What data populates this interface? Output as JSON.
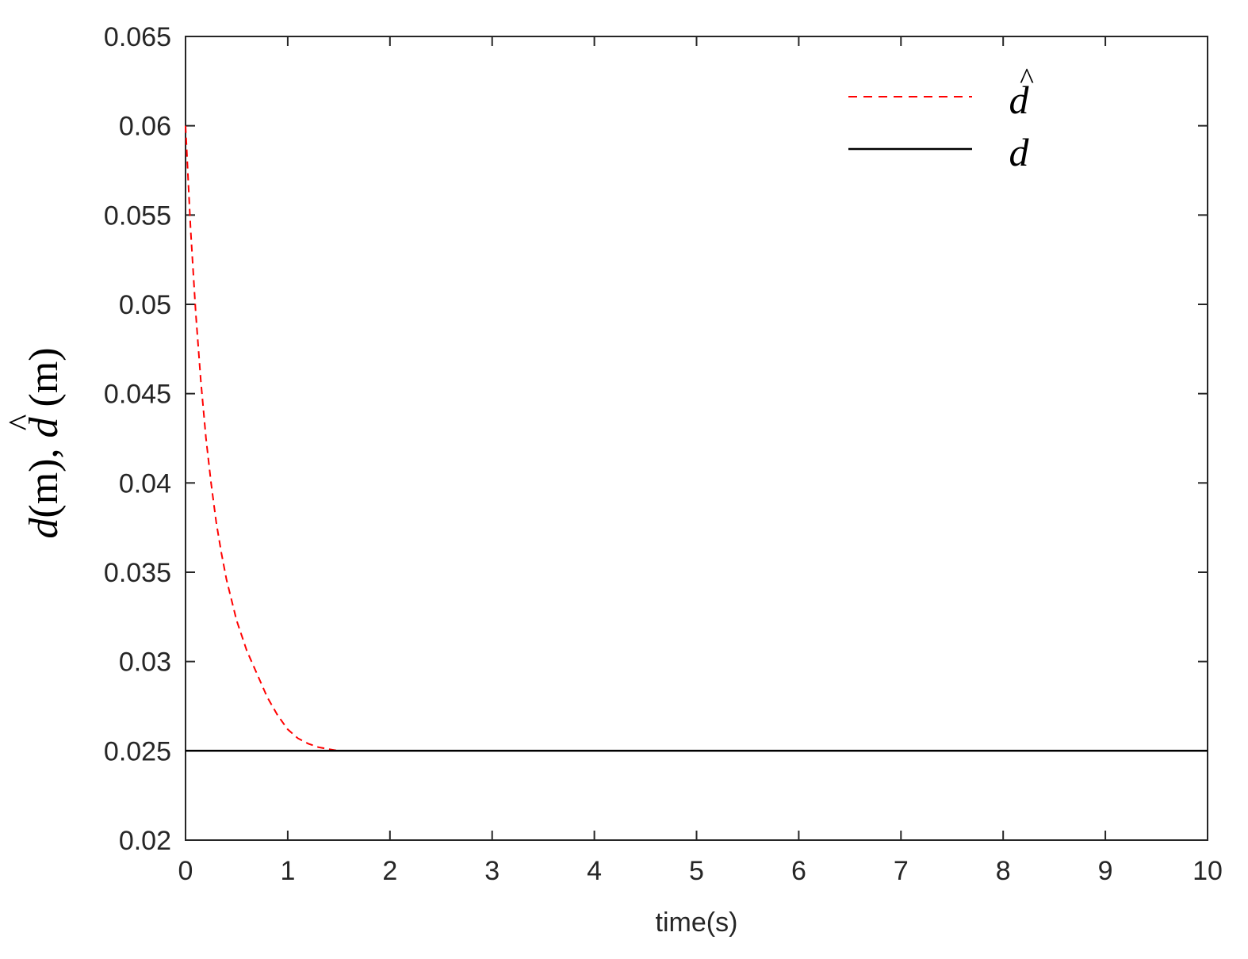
{
  "chart_data": {
    "type": "line",
    "xlabel": "time(s)",
    "ylabel": {
      "d_symbol": "d",
      "d_unit": "(m), ",
      "dhat_symbol": "d",
      "hat_mark": "^",
      "dhat_unit": " (m)"
    },
    "xlim": [
      0,
      10
    ],
    "ylim": [
      0.02,
      0.065
    ],
    "x_ticks": [
      "0",
      "1",
      "2",
      "3",
      "4",
      "5",
      "6",
      "7",
      "8",
      "9",
      "10"
    ],
    "y_ticks": [
      "0.02",
      "0.025",
      "0.03",
      "0.035",
      "0.04",
      "0.045",
      "0.05",
      "0.055",
      "0.06",
      "0.065"
    ],
    "grid": false,
    "legend_position": "top-right",
    "series": [
      {
        "name": "d̂",
        "legend_symbol": "d",
        "legend_hat": "^",
        "color": "#ff0000",
        "style": "dashed",
        "x": [
          0,
          0.05,
          0.1,
          0.15,
          0.2,
          0.25,
          0.3,
          0.35,
          0.4,
          0.5,
          0.6,
          0.7,
          0.8,
          0.9,
          1.0,
          1.1,
          1.2,
          1.3,
          1.4,
          1.5
        ],
        "y": [
          0.06,
          0.0542,
          0.0495,
          0.0457,
          0.0425,
          0.04,
          0.0378,
          0.0361,
          0.0346,
          0.0323,
          0.0306,
          0.0293,
          0.028,
          0.027,
          0.0262,
          0.0257,
          0.0254,
          0.0252,
          0.0251,
          0.025
        ]
      },
      {
        "name": "d",
        "legend_symbol": "d",
        "color": "#000000",
        "style": "solid",
        "x": [
          0,
          10
        ],
        "y": [
          0.025,
          0.025
        ]
      }
    ]
  }
}
